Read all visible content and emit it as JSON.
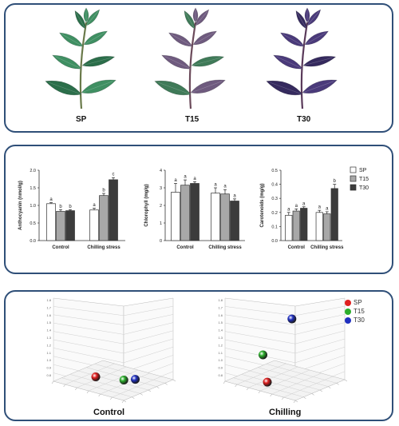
{
  "plants": [
    {
      "label": "SP",
      "leaf": "#3f8f62",
      "leafDark": "#2b6e4a",
      "stem": "#6a7a4a"
    },
    {
      "label": "T15",
      "leaf": "#6e5a7e",
      "leafDark": "#3f7a58",
      "stem": "#6b4a5a"
    },
    {
      "label": "T30",
      "leaf": "#4a3a7a",
      "leafDark": "#352a5e",
      "stem": "#5a3a5a"
    }
  ],
  "colors": {
    "SP": "#ffffff",
    "T15": "#a8a8a8",
    "T30": "#3c3c3c",
    "border": "#2f4f78",
    "ball_SP": "#e02020",
    "ball_T15": "#2cae2c",
    "ball_T30": "#2030c0"
  },
  "chart_data": [
    {
      "type": "bar",
      "categories": [
        "Control",
        "Chilling stress"
      ],
      "ylabel": "Anthocyanin (nmol/g)",
      "ylim": [
        0,
        2.0
      ],
      "yticks": [
        "0.0",
        "0.5",
        "1.0",
        "1.5",
        "2.0"
      ],
      "series": [
        {
          "name": "SP",
          "values": [
            1.05,
            0.87
          ],
          "errors": [
            0.03,
            0.05
          ],
          "letters": [
            "a",
            "a"
          ]
        },
        {
          "name": "T15",
          "values": [
            0.83,
            1.28
          ],
          "errors": [
            0.05,
            0.06
          ],
          "letters": [
            "b",
            "b"
          ]
        },
        {
          "name": "T30",
          "values": [
            0.85,
            1.73
          ],
          "errors": [
            0.03,
            0.06
          ],
          "letters": [
            "b",
            "c"
          ]
        }
      ]
    },
    {
      "type": "bar",
      "categories": [
        "Control",
        "Chilling stress"
      ],
      "ylabel": "Chlorophyll (mg/g)",
      "ylim": [
        0,
        4
      ],
      "yticks": [
        "0",
        "1",
        "2",
        "3",
        "4"
      ],
      "series": [
        {
          "name": "SP",
          "values": [
            2.75,
            2.7
          ],
          "errors": [
            0.5,
            0.3
          ],
          "letters": [
            "a",
            "a"
          ]
        },
        {
          "name": "T15",
          "values": [
            3.15,
            2.65
          ],
          "errors": [
            0.3,
            0.25
          ],
          "letters": [
            "a",
            "a"
          ]
        },
        {
          "name": "T30",
          "values": [
            3.25,
            2.25
          ],
          "errors": [
            0.1,
            0.12
          ],
          "letters": [
            "a",
            "a"
          ]
        }
      ]
    },
    {
      "type": "bar",
      "categories": [
        "Control",
        "Chilling stress"
      ],
      "ylabel": "Carotenoids (mg/g)",
      "ylim": [
        0,
        0.5
      ],
      "yticks": [
        "0.0",
        "0.1",
        "0.2",
        "0.3",
        "0.4",
        "0.5"
      ],
      "series": [
        {
          "name": "SP",
          "values": [
            0.18,
            0.2
          ],
          "errors": [
            0.02,
            0.015
          ],
          "letters": [
            "a",
            "a"
          ]
        },
        {
          "name": "T15",
          "values": [
            0.21,
            0.19
          ],
          "errors": [
            0.015,
            0.015
          ],
          "letters": [
            "a",
            "a"
          ]
        },
        {
          "name": "T30",
          "values": [
            0.23,
            0.37
          ],
          "errors": [
            0.01,
            0.03
          ],
          "letters": [
            "a",
            "b"
          ]
        }
      ]
    },
    {
      "type": "scatter",
      "title": "Control",
      "zticks": [
        "1.8",
        "1.7",
        "1.6",
        "1.5",
        "1.4",
        "1.3",
        "1.2",
        "1.1",
        "1.0",
        "0.9",
        "0.8"
      ],
      "points": [
        {
          "name": "SP",
          "u": 0.3,
          "v": 0.12
        },
        {
          "name": "T15",
          "u": 0.62,
          "v": 0.03
        },
        {
          "name": "T30",
          "u": 0.75,
          "v": 0.02
        }
      ]
    },
    {
      "type": "scatter",
      "title": "Chilling",
      "zticks": [
        "1.8",
        "1.7",
        "1.6",
        "1.5",
        "1.4",
        "1.3",
        "1.2",
        "1.1",
        "1.0",
        "0.9",
        "0.8"
      ],
      "points": [
        {
          "name": "SP",
          "u": 0.3,
          "v": 0.05
        },
        {
          "name": "T15",
          "u": 0.25,
          "v": 0.42
        },
        {
          "name": "T30",
          "u": 0.58,
          "v": 0.85
        }
      ]
    }
  ],
  "legend": [
    "SP",
    "T15",
    "T30"
  ]
}
